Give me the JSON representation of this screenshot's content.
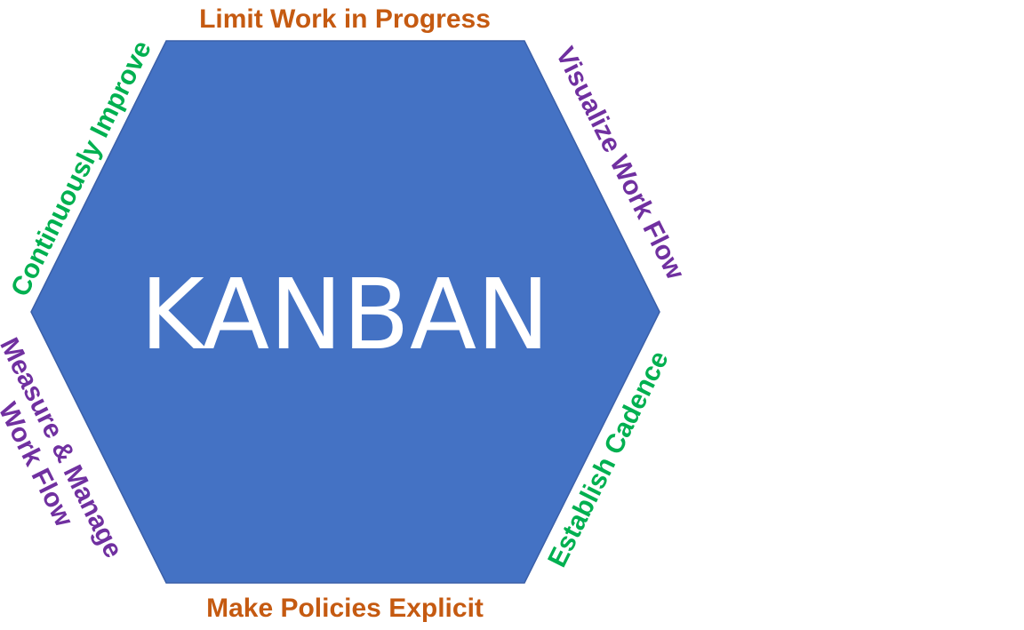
{
  "diagram": {
    "center_title": "KANBAN",
    "labels": {
      "top": "Limit Work in Progress",
      "top_right": "Visualize Work Flow",
      "bottom_right": "Establish Cadence",
      "bottom": "Make Policies Explicit",
      "bottom_left_line1": "Measure & Manage",
      "bottom_left_line2": "Work Flow",
      "top_left": "Continuously Improve"
    }
  },
  "colors": {
    "hexagon_fill": "#4472C4",
    "hexagon_stroke": "#3A5FA8",
    "center_text": "#FFFFFF",
    "orange": "#C55A11",
    "purple": "#7030A0",
    "green": "#00B050"
  }
}
